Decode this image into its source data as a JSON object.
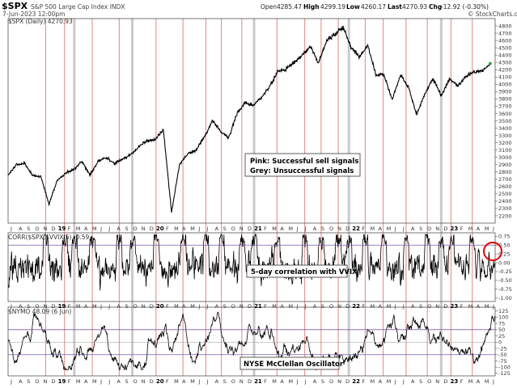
{
  "header": {
    "symbol": "$SPX",
    "description": "S&P 500 Large Cap Index INDX",
    "date": "7-Jun-2023 12:00pm",
    "open_label": "Open",
    "open": "4285.47",
    "high_label": "High",
    "high": "4299.19",
    "low_label": "Low",
    "low": "4260.17",
    "close_label": "Last",
    "close": "4270.93",
    "chg_label": "Chg",
    "chg": "-12.92 (-0.30%)",
    "credit": "© StockCharts.com"
  },
  "colors": {
    "price_line": "#000000",
    "pink_signal": "#e06a6a",
    "grey_signal": "#a0a0a0",
    "frame": "#555555",
    "guide": "#7a5aa8",
    "circle": "#e00000"
  },
  "annotations": {
    "legend_pink": "Pink: Successful sell signals",
    "legend_grey": "Grey: Unsuccessful signals",
    "corr_note": "5-day correlation with VVIX",
    "nymo_note": "NYSE McClellan Oscillator"
  },
  "time_axis": {
    "start": "2018-07",
    "end": "2023-06",
    "year_labels": [
      "19",
      "20",
      "21",
      "22",
      "23"
    ],
    "month_letters": [
      "J",
      "A",
      "S",
      "O",
      "N",
      "D",
      "19",
      "F",
      "M",
      "A",
      "M",
      "J",
      "J",
      "A",
      "S",
      "O",
      "N",
      "D",
      "20",
      "F",
      "M",
      "A",
      "M",
      "J",
      "J",
      "A",
      "S",
      "O",
      "N",
      "D",
      "21",
      "F",
      "M",
      "A",
      "M",
      "J",
      "J",
      "A",
      "S",
      "O",
      "N",
      "D",
      "22",
      "F",
      "M",
      "A",
      "M",
      "J",
      "J",
      "A",
      "S",
      "O",
      "N",
      "D",
      "23",
      "F",
      "M",
      "A",
      "M",
      "J"
    ]
  },
  "signals": {
    "pink_months": [
      4.6,
      6.9,
      10.3,
      13.6,
      18.1,
      21.4,
      24.2,
      26.1,
      28.6,
      32.9,
      36.3,
      38.3,
      40.4,
      43.7,
      45.9,
      48.7,
      51.3,
      54.2,
      56.8
    ],
    "grey_months": [
      8.1,
      15.2,
      30.1,
      41.7,
      53.0
    ]
  },
  "chart_data": [
    {
      "type": "line",
      "title": "$SPX (Daily) 4270.93",
      "x_unit": "month",
      "x": [
        "2018-07",
        "2018-08",
        "2018-09",
        "2018-10",
        "2018-11",
        "2018-12",
        "2019-01",
        "2019-02",
        "2019-03",
        "2019-04",
        "2019-05",
        "2019-06",
        "2019-07",
        "2019-08",
        "2019-09",
        "2019-10",
        "2019-11",
        "2019-12",
        "2020-01",
        "2020-02",
        "2020-03",
        "2020-04",
        "2020-05",
        "2020-06",
        "2020-07",
        "2020-08",
        "2020-09",
        "2020-10",
        "2020-11",
        "2020-12",
        "2021-01",
        "2021-02",
        "2021-03",
        "2021-04",
        "2021-05",
        "2021-06",
        "2021-07",
        "2021-08",
        "2021-09",
        "2021-10",
        "2021-11",
        "2021-12",
        "2022-01",
        "2022-02",
        "2022-03",
        "2022-04",
        "2022-05",
        "2022-06",
        "2022-07",
        "2022-08",
        "2022-09",
        "2022-10",
        "2022-11",
        "2022-12",
        "2023-01",
        "2023-02",
        "2023-03",
        "2023-04",
        "2023-05",
        "2023-06"
      ],
      "series": [
        {
          "values": [
            2760,
            2900,
            2920,
            2750,
            2740,
            2360,
            2680,
            2780,
            2830,
            2950,
            2760,
            2950,
            3000,
            2920,
            2970,
            3040,
            3140,
            3230,
            3240,
            3380,
            2250,
            2910,
            3050,
            3100,
            3270,
            3500,
            3360,
            3270,
            3600,
            3750,
            3710,
            3820,
            3970,
            4180,
            4200,
            4300,
            4400,
            4520,
            4300,
            4600,
            4690,
            4780,
            4500,
            4380,
            4530,
            4130,
            4130,
            3790,
            4130,
            3960,
            3590,
            3870,
            4080,
            3840,
            4070,
            3980,
            4110,
            4170,
            4180,
            4285
          ]
        }
      ],
      "ylim": [
        2100,
        4900
      ],
      "y_ticks": [
        2200,
        2300,
        2400,
        2500,
        2600,
        2700,
        2800,
        2900,
        3000,
        3100,
        3200,
        3300,
        3400,
        3500,
        3600,
        3700,
        3800,
        3900,
        4000,
        4100,
        4200,
        4300,
        4400,
        4500,
        4600,
        4700,
        4800
      ]
    },
    {
      "type": "line",
      "title": "CORR($SPX,$VVIX,5) -0.59",
      "x_unit": "month",
      "x_range": [
        "2018-07",
        "2023-06"
      ],
      "series": [
        {
          "description": "5-day rolling correlation oscillating between -1.0 and 0.8, with spikes above 0.5 near signal lines"
        }
      ],
      "ylim": [
        -1.1,
        0.85
      ],
      "y_ticks": [
        0.75,
        0.5,
        0.25,
        0.0,
        -0.25,
        -0.5,
        -0.75,
        -1.0
      ],
      "threshold": 0.5
    },
    {
      "type": "line",
      "title": "$NYMO 48.09 (6 Jun)",
      "x_unit": "month",
      "x_range": [
        "2018-07",
        "2023-06"
      ],
      "series": [
        {
          "description": "NYSE McClellan Oscillator oscillating roughly between -110 and 120"
        }
      ],
      "ylim": [
        -135,
        140
      ],
      "y_ticks": [
        125,
        100,
        75,
        50,
        25,
        0,
        -25,
        -50,
        -75,
        -100,
        -125
      ],
      "bands": [
        50,
        -50
      ]
    }
  ]
}
